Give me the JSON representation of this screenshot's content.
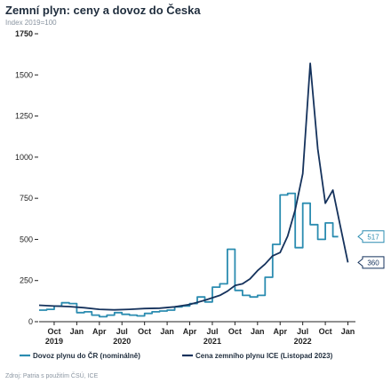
{
  "title": "Zemní plyn: ceny a dovoz do Česka",
  "subtitle": "Index 2019=100",
  "source": "Zdroj: Patria s použitím ČSÚ, ICE",
  "colors": {
    "series1": "#2b8cb0",
    "series2": "#15325c",
    "axis": "#222222"
  },
  "chart_data": {
    "type": "line",
    "title": "Zemní plyn: ceny a dovoz do Česka",
    "ylabel": "Index 2019=100",
    "ylim": [
      0,
      1750
    ],
    "yticks": [
      0,
      250,
      500,
      750,
      1000,
      1250,
      1500,
      1750
    ],
    "ytick_labels": [
      "0",
      "250",
      "500",
      "750",
      "1000",
      "1250",
      "1500",
      "1750"
    ],
    "xlim": [
      "2019-08",
      "2023-02"
    ],
    "xticks": [
      {
        "date": "2019-10",
        "label": "Oct",
        "year": "2019"
      },
      {
        "date": "2020-01",
        "label": "Jan",
        "year": ""
      },
      {
        "date": "2020-04",
        "label": "Apr",
        "year": ""
      },
      {
        "date": "2020-07",
        "label": "Jul",
        "year": "2020"
      },
      {
        "date": "2020-10",
        "label": "Oct",
        "year": ""
      },
      {
        "date": "2021-01",
        "label": "Jan",
        "year": ""
      },
      {
        "date": "2021-04",
        "label": "Apr",
        "year": ""
      },
      {
        "date": "2021-07",
        "label": "Jul",
        "year": "2021"
      },
      {
        "date": "2021-10",
        "label": "Oct",
        "year": ""
      },
      {
        "date": "2022-01",
        "label": "Jan",
        "year": ""
      },
      {
        "date": "2022-04",
        "label": "Apr",
        "year": ""
      },
      {
        "date": "2022-07",
        "label": "Jul",
        "year": "2022"
      },
      {
        "date": "2022-10",
        "label": "Oct",
        "year": ""
      },
      {
        "date": "2023-01",
        "label": "Jan",
        "year": ""
      }
    ],
    "legend_position": "bottom",
    "series": [
      {
        "name": "Dovoz plynu do ČR (nominálně)",
        "color": "#2b8cb0",
        "step": true,
        "callout": "517",
        "points": [
          [
            "2019-08",
            70
          ],
          [
            "2019-09",
            75
          ],
          [
            "2019-10",
            95
          ],
          [
            "2019-11",
            115
          ],
          [
            "2019-12",
            110
          ],
          [
            "2020-01",
            55
          ],
          [
            "2020-02",
            60
          ],
          [
            "2020-03",
            40
          ],
          [
            "2020-04",
            30
          ],
          [
            "2020-05",
            40
          ],
          [
            "2020-06",
            55
          ],
          [
            "2020-07",
            45
          ],
          [
            "2020-08",
            40
          ],
          [
            "2020-09",
            35
          ],
          [
            "2020-10",
            50
          ],
          [
            "2020-11",
            60
          ],
          [
            "2020-12",
            65
          ],
          [
            "2021-01",
            70
          ],
          [
            "2021-02",
            90
          ],
          [
            "2021-03",
            95
          ],
          [
            "2021-04",
            110
          ],
          [
            "2021-05",
            150
          ],
          [
            "2021-06",
            120
          ],
          [
            "2021-07",
            210
          ],
          [
            "2021-08",
            230
          ],
          [
            "2021-09",
            440
          ],
          [
            "2021-10",
            190
          ],
          [
            "2021-11",
            160
          ],
          [
            "2021-12",
            150
          ],
          [
            "2022-01",
            160
          ],
          [
            "2022-02",
            270
          ],
          [
            "2022-03",
            470
          ],
          [
            "2022-04",
            770
          ],
          [
            "2022-05",
            780
          ],
          [
            "2022-06",
            450
          ],
          [
            "2022-07",
            720
          ],
          [
            "2022-08",
            590
          ],
          [
            "2022-09",
            500
          ],
          [
            "2022-10",
            600
          ],
          [
            "2022-11",
            517
          ]
        ]
      },
      {
        "name": "Cena zemního plynu ICE (Listopad 2023)",
        "color": "#15325c",
        "step": false,
        "callout": "360",
        "points": [
          [
            "2019-08",
            100
          ],
          [
            "2019-10",
            95
          ],
          [
            "2019-12",
            92
          ],
          [
            "2020-02",
            85
          ],
          [
            "2020-04",
            75
          ],
          [
            "2020-06",
            72
          ],
          [
            "2020-08",
            75
          ],
          [
            "2020-10",
            80
          ],
          [
            "2020-12",
            82
          ],
          [
            "2021-02",
            90
          ],
          [
            "2021-04",
            105
          ],
          [
            "2021-06",
            130
          ],
          [
            "2021-08",
            160
          ],
          [
            "2021-09",
            185
          ],
          [
            "2021-10",
            220
          ],
          [
            "2021-11",
            230
          ],
          [
            "2021-12",
            260
          ],
          [
            "2022-01",
            310
          ],
          [
            "2022-02",
            350
          ],
          [
            "2022-03",
            400
          ],
          [
            "2022-04",
            420
          ],
          [
            "2022-05",
            520
          ],
          [
            "2022-06",
            680
          ],
          [
            "2022-07",
            900
          ],
          [
            "2022-08",
            1570
          ],
          [
            "2022-09",
            1050
          ],
          [
            "2022-10",
            720
          ],
          [
            "2022-11",
            800
          ],
          [
            "2022-12",
            580
          ],
          [
            "2023-01",
            360
          ]
        ]
      }
    ]
  }
}
